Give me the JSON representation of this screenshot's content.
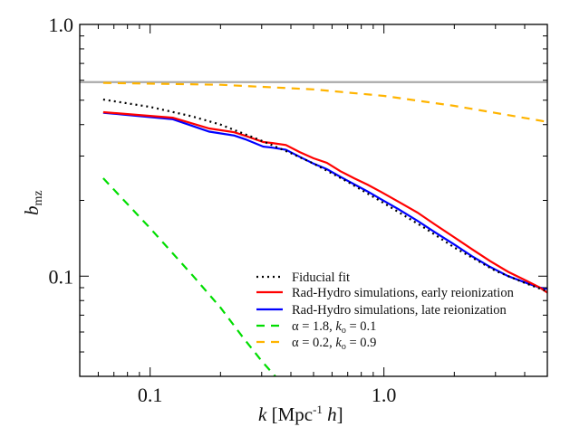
{
  "chart_data": {
    "type": "line",
    "xlabel": {
      "main": "k",
      "bracket_open": " [Mpc",
      "sup": "-1",
      "unit": " h",
      "bracket_close": "]"
    },
    "ylabel": {
      "main": "b",
      "sub": "mz"
    },
    "xscale": "log",
    "yscale": "log",
    "xlim": [
      0.05,
      5.0
    ],
    "ylim": [
      0.04,
      1.0
    ],
    "xticks": [
      {
        "value": 0.1,
        "label": "0.1"
      },
      {
        "value": 1.0,
        "label": "1.0"
      }
    ],
    "yticks": [
      {
        "value": 0.1,
        "label": "0.1"
      },
      {
        "value": 1.0,
        "label": "1.0"
      }
    ],
    "grid": false,
    "legend_position": "bottom-right",
    "reference_line": {
      "y": 0.59,
      "color": "#aaaaaa"
    },
    "series": [
      {
        "name": "Fiducial fit",
        "color": "#000000",
        "style": "dotted",
        "x": [
          0.063,
          0.1,
          0.15,
          0.2,
          0.3,
          0.4,
          0.5,
          0.7,
          1.0,
          1.5,
          2.0,
          3.0,
          4.0,
          5.0
        ],
        "y": [
          0.503,
          0.47,
          0.432,
          0.4,
          0.345,
          0.308,
          0.28,
          0.237,
          0.195,
          0.155,
          0.13,
          0.105,
          0.094,
          0.087
        ]
      },
      {
        "name": "Rad-Hydro simulations, early reionization",
        "color": "#ff0000",
        "style": "solid",
        "x": [
          0.063,
          0.125,
          0.179,
          0.229,
          0.255,
          0.305,
          0.333,
          0.381,
          0.436,
          0.499,
          0.57,
          0.652,
          0.745,
          0.851,
          0.973,
          1.16,
          1.39,
          1.66,
          1.99,
          2.38,
          2.84,
          3.4,
          4.06,
          4.65,
          5.0
        ],
        "y": [
          0.448,
          0.426,
          0.386,
          0.373,
          0.361,
          0.341,
          0.338,
          0.332,
          0.311,
          0.294,
          0.282,
          0.261,
          0.245,
          0.231,
          0.216,
          0.197,
          0.179,
          0.16,
          0.143,
          0.128,
          0.115,
          0.104,
          0.096,
          0.09,
          0.086
        ]
      },
      {
        "name": "Rad-Hydro simulations, late reionization",
        "color": "#0000ff",
        "style": "solid",
        "x": [
          0.063,
          0.125,
          0.179,
          0.229,
          0.255,
          0.305,
          0.333,
          0.381,
          0.436,
          0.499,
          0.57,
          0.652,
          0.745,
          0.851,
          0.973,
          1.16,
          1.39,
          1.66,
          1.99,
          2.38,
          2.84,
          3.4,
          4.06,
          4.65,
          5.0
        ],
        "y": [
          0.446,
          0.42,
          0.375,
          0.362,
          0.35,
          0.327,
          0.324,
          0.318,
          0.298,
          0.28,
          0.266,
          0.248,
          0.232,
          0.217,
          0.202,
          0.184,
          0.166,
          0.149,
          0.134,
          0.12,
          0.109,
          0.1,
          0.094,
          0.09,
          0.089
        ]
      },
      {
        "name": "α = 1.8, k_o = 0.1",
        "label_parts": {
          "pre": "α = 1.8, ",
          "k": "k",
          "sub": "o",
          "post": " = 0.1"
        },
        "color": "#00dd00",
        "style": "dashed",
        "x": [
          0.063,
          0.1,
          0.153,
          0.2,
          0.25,
          0.3,
          0.343,
          0.36
        ],
        "y": [
          0.245,
          0.155,
          0.1,
          0.075,
          0.057,
          0.046,
          0.04,
          0.037
        ]
      },
      {
        "name": "α = 0.2, k_o = 0.9",
        "label_parts": {
          "pre": "α = 0.2, ",
          "k": "k",
          "sub": "o",
          "post": " = 0.9"
        },
        "color": "#ffb400",
        "style": "dashed",
        "x": [
          0.063,
          0.2,
          0.5,
          1.0,
          2.0,
          3.0,
          5.0
        ],
        "y": [
          0.586,
          0.576,
          0.552,
          0.52,
          0.475,
          0.445,
          0.41
        ]
      }
    ]
  }
}
